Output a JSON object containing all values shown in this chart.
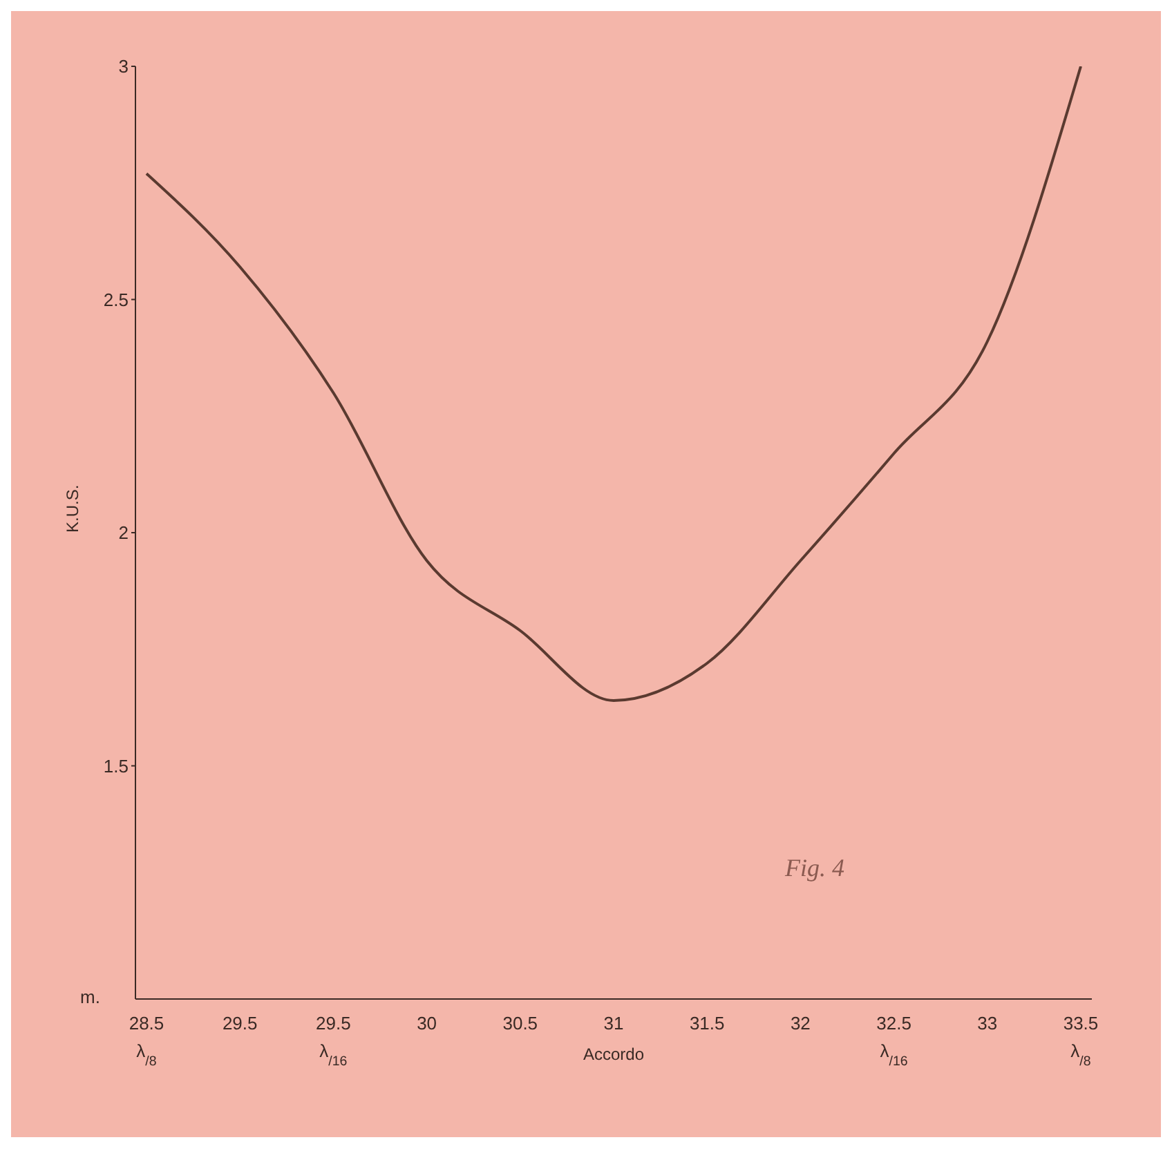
{
  "chart_data": {
    "type": "line",
    "xlabel": "Accordo",
    "ylabel": "K.U.S.",
    "categories": [
      "28.5\nλ$_{/8}$",
      "29.5",
      "29.5\nλ$_{/16}$",
      "30",
      "30.5",
      "31",
      "31.5",
      "32",
      "32.5\nλ$_{/16}$",
      "33",
      "33.5\nλ$_{/8}$"
    ],
    "series": [
      {
        "color": "#5a3a30",
        "values": [
          2.77,
          2.57,
          2.3,
          1.94,
          1.79,
          1.64,
          1.72,
          1.94,
          2.17,
          2.41,
          3.0
        ]
      }
    ],
    "ylim": [
      1,
      3
    ],
    "yticks": [
      1.5,
      2,
      2.5,
      3
    ],
    "marker": "none",
    "line_style": "solid",
    "annotations": [
      "m.",
      "Fig. 4"
    ]
  }
}
